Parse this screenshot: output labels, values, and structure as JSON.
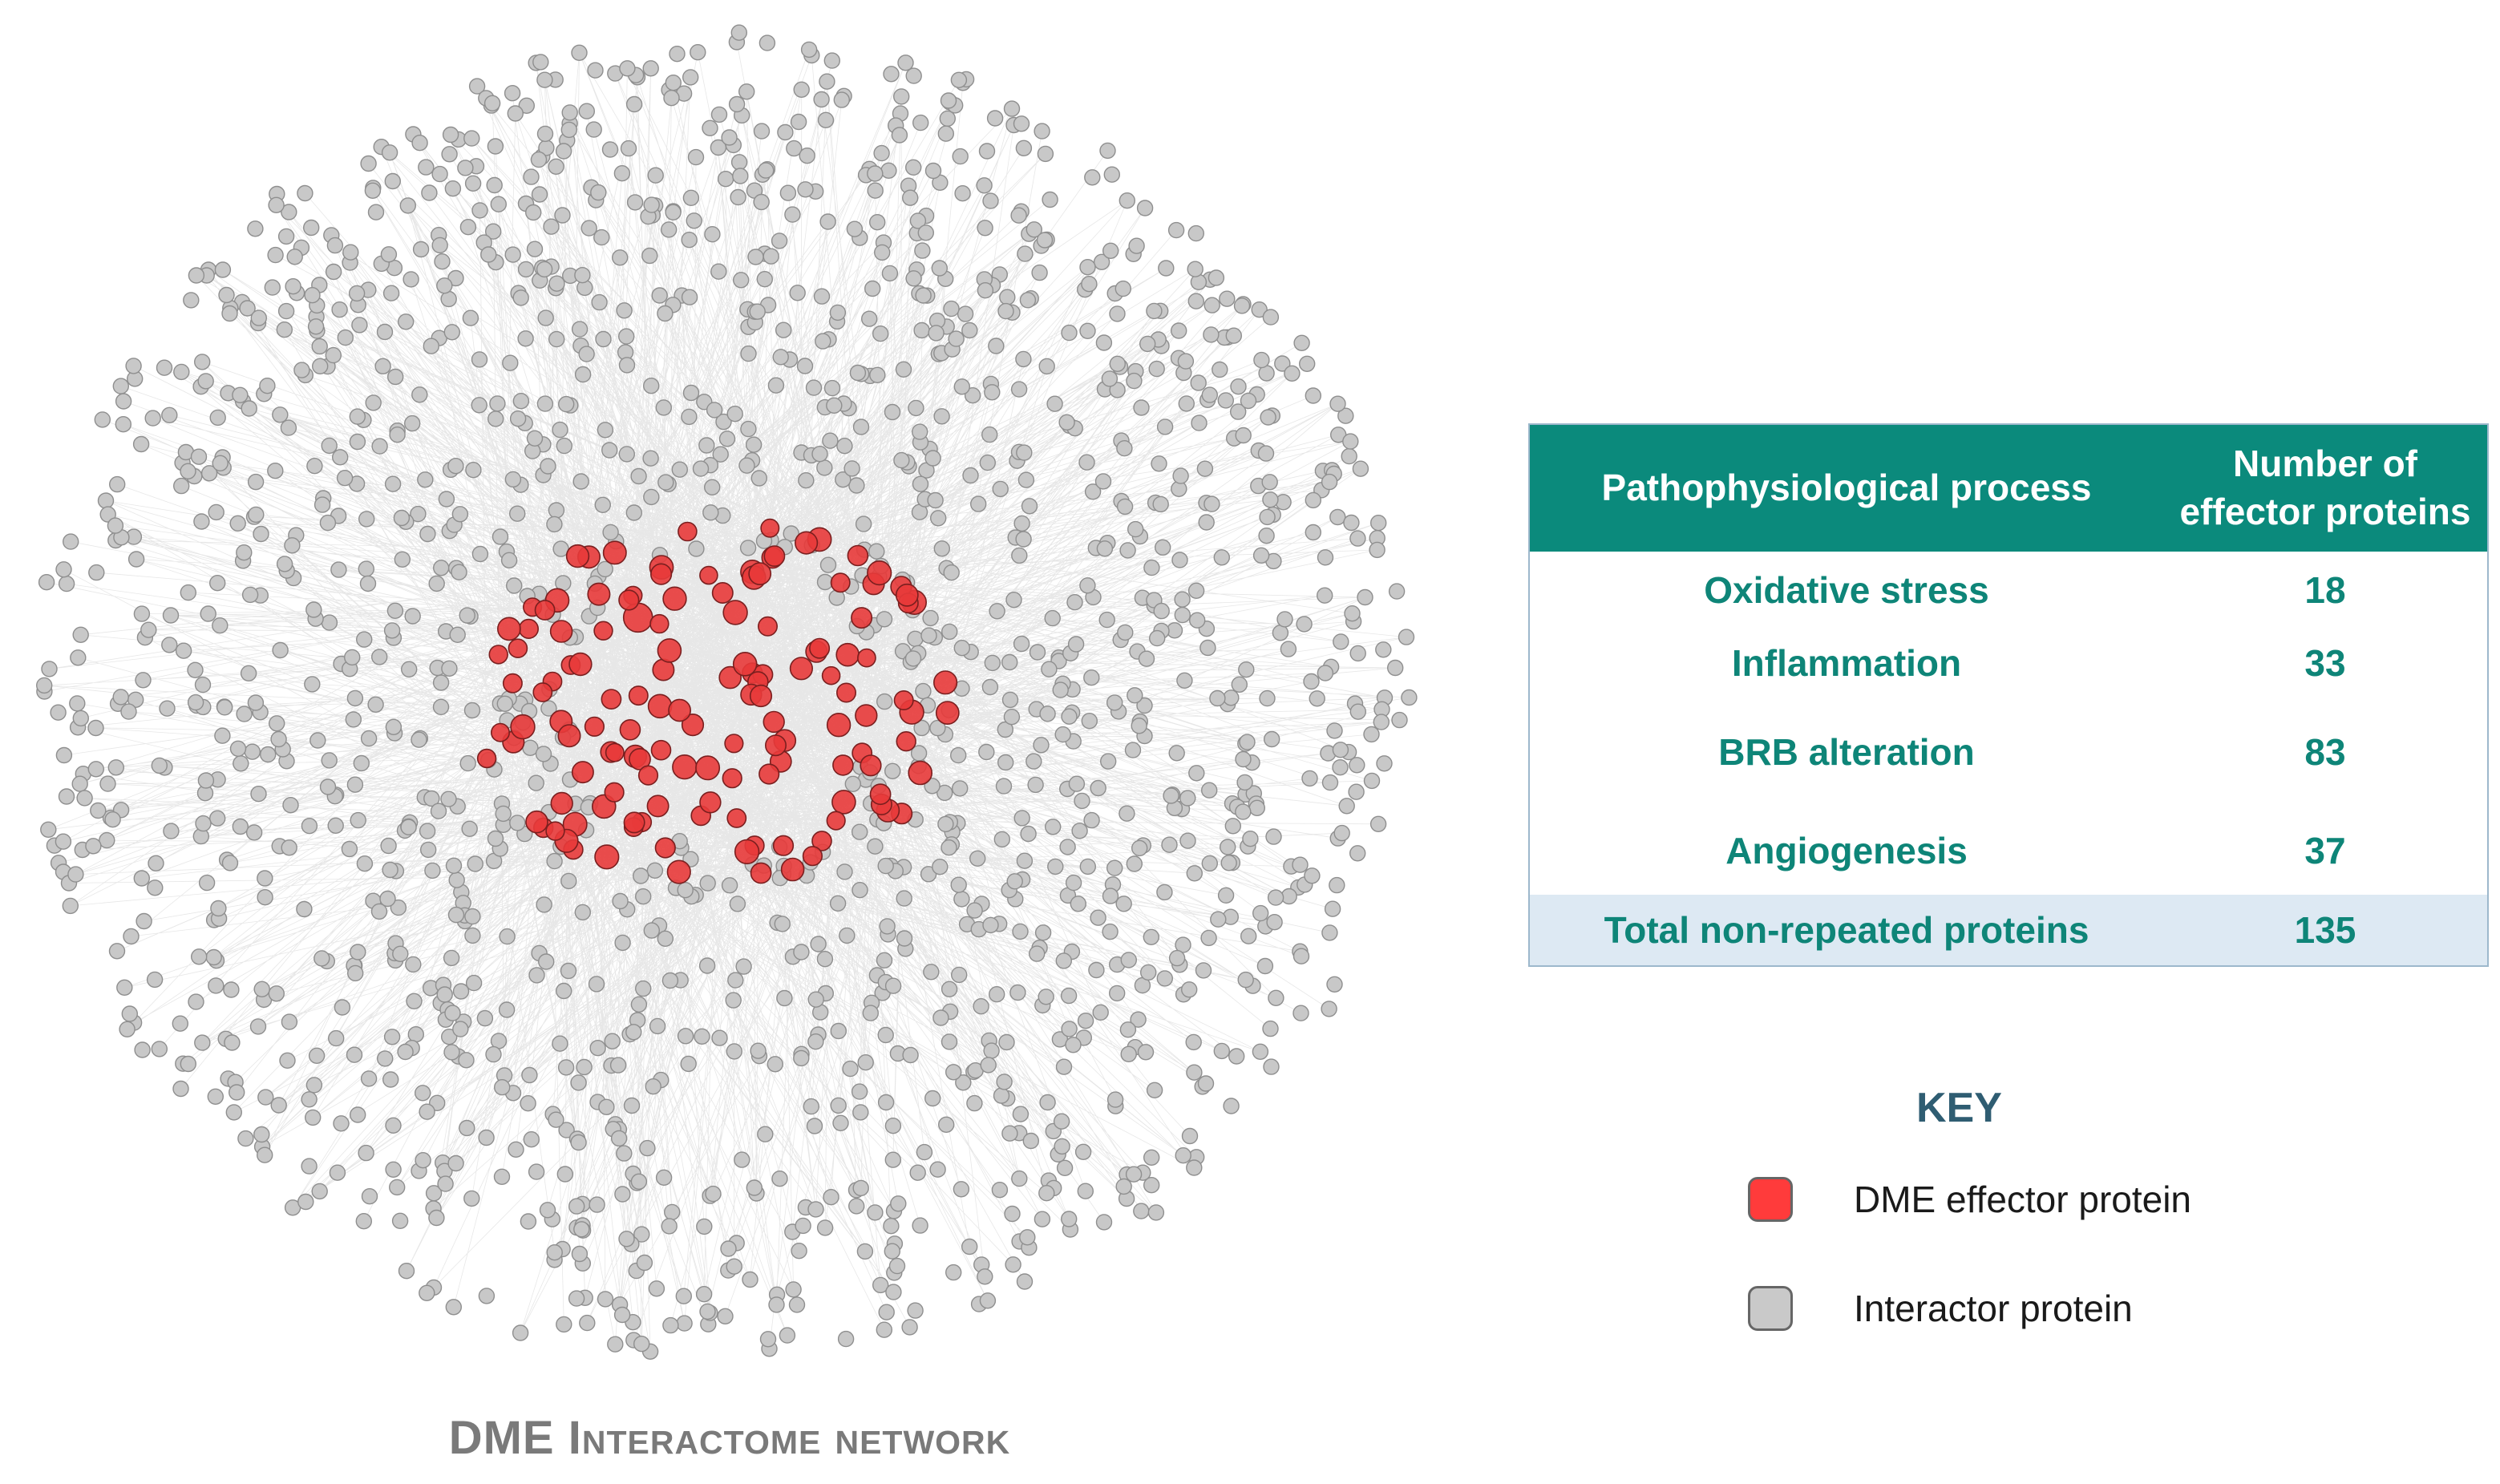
{
  "network": {
    "caption": "DME Interactome network",
    "effector_color": "#e83a3a",
    "interactor_color": "#c8c8c8",
    "edge_color": "#b9b9b9"
  },
  "table": {
    "headers": [
      "Pathophysiological process",
      "Number of effector proteins"
    ],
    "rows": [
      {
        "process": "Oxidative stress",
        "count": "18"
      },
      {
        "process": "Inflammation",
        "count": "33"
      },
      {
        "process": "BRB alteration",
        "count": "83"
      },
      {
        "process": "Angiogenesis",
        "count": "37"
      }
    ],
    "total": {
      "label": "Total non-repeated proteins",
      "count": "135"
    },
    "header_color": "#0b8a7c",
    "text_color": "#0e8578",
    "total_row_color": "#dde9f3"
  },
  "key": {
    "title": "KEY",
    "items": [
      {
        "label": "DME effector protein",
        "color": "#ff3b3b"
      },
      {
        "label": "Interactor protein",
        "color": "#c9c9c9"
      }
    ]
  }
}
